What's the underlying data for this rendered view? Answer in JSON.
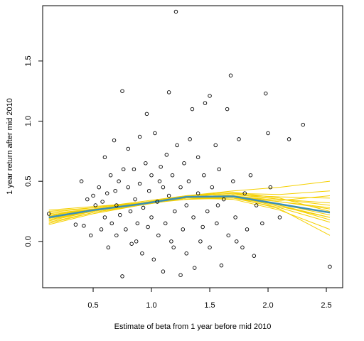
{
  "chart_data": {
    "type": "scatter",
    "x_label": "Estimate of beta from 1 year before mid 2010",
    "y_label": "1 year return after mid 2010",
    "xlim": [
      0.067,
      2.64
    ],
    "ylim": [
      -0.385,
      1.96
    ],
    "xticks": [
      0.5,
      {
        "value": 1.0,
        "label": "1.0"
      },
      1.5,
      {
        "value": 2.0,
        "label": "2.0"
      },
      2.5
    ],
    "yticks": [
      {
        "value": 0.0,
        "label": "0.0"
      },
      0.5,
      {
        "value": 1.0,
        "label": "1.0"
      },
      1.5
    ],
    "points": {
      "color": "#000000",
      "x": [
        0.12,
        0.35,
        0.4,
        0.42,
        0.45,
        0.48,
        0.5,
        0.52,
        0.55,
        0.57,
        0.6,
        0.6,
        0.62,
        0.63,
        0.65,
        0.66,
        0.68,
        0.7,
        0.7,
        0.72,
        0.73,
        0.75,
        0.75,
        0.76,
        0.78,
        0.8,
        0.8,
        0.82,
        0.83,
        0.85,
        0.86,
        0.88,
        0.9,
        0.9,
        0.92,
        0.93,
        0.95,
        0.96,
        0.98,
        1.0,
        1.0,
        1.02,
        1.03,
        1.05,
        1.06,
        1.08,
        1.1,
        1.1,
        1.12,
        1.13,
        1.15,
        1.15,
        1.17,
        1.18,
        1.2,
        1.21,
        1.22,
        1.25,
        1.25,
        1.27,
        1.28,
        1.3,
        1.3,
        1.32,
        1.35,
        1.36,
        1.37,
        1.4,
        1.4,
        1.42,
        1.45,
        1.46,
        1.48,
        1.5,
        1.5,
        1.52,
        1.55,
        1.56,
        1.58,
        1.6,
        1.62,
        1.65,
        1.66,
        1.68,
        1.7,
        1.72,
        1.75,
        1.78,
        1.8,
        1.82,
        1.85,
        1.88,
        1.9,
        1.95,
        1.98,
        2.0,
        2.02,
        2.1,
        2.18,
        2.3,
        2.53,
        0.58,
        0.69,
        0.87,
        0.97,
        1.07,
        1.19,
        1.33,
        1.44,
        1.57,
        1.73
      ],
      "y": [
        0.23,
        0.14,
        0.5,
        0.13,
        0.35,
        0.05,
        0.38,
        0.3,
        0.45,
        0.1,
        0.7,
        0.2,
        0.4,
        -0.05,
        0.55,
        0.15,
        0.84,
        0.3,
        0.05,
        0.5,
        0.22,
        1.25,
        -0.29,
        0.6,
        0.1,
        0.45,
        0.77,
        0.25,
        -0.02,
        0.6,
        0.35,
        0.15,
        0.87,
        0.48,
        -0.1,
        0.28,
        0.65,
        1.06,
        0.42,
        0.2,
        0.55,
        -0.15,
        0.9,
        0.33,
        0.05,
        0.62,
        0.45,
        -0.25,
        0.15,
        0.72,
        1.24,
        0.38,
        0.0,
        0.55,
        0.25,
        1.91,
        0.8,
        -0.28,
        0.45,
        0.1,
        0.65,
        0.3,
        -0.1,
        0.5,
        1.1,
        0.2,
        -0.22,
        0.7,
        0.4,
        0.0,
        0.55,
        1.15,
        0.25,
        1.21,
        -0.05,
        0.45,
        0.8,
        0.15,
        0.6,
        -0.2,
        0.35,
        1.1,
        0.05,
        1.38,
        0.5,
        0.2,
        0.85,
        -0.05,
        0.4,
        0.1,
        0.55,
        -0.12,
        0.3,
        0.15,
        1.23,
        0.9,
        0.45,
        0.2,
        0.85,
        0.97,
        -0.21,
        0.33,
        0.42,
        0.0,
        0.12,
        0.5,
        -0.05,
        0.85,
        0.12,
        0.3,
        0.0
      ]
    },
    "line_x": [
      0.12,
      0.5,
      0.9,
      1.3,
      1.7,
      2.1,
      2.53
    ],
    "bootstrap": {
      "color": "#f5d000",
      "series": [
        {
          "values": [
            0.18,
            0.25,
            0.31,
            0.36,
            0.37,
            0.3,
            0.2
          ]
        },
        {
          "values": [
            0.22,
            0.27,
            0.32,
            0.37,
            0.38,
            0.33,
            0.28
          ]
        },
        {
          "values": [
            0.16,
            0.24,
            0.3,
            0.36,
            0.39,
            0.35,
            0.32
          ]
        },
        {
          "values": [
            0.25,
            0.28,
            0.32,
            0.36,
            0.36,
            0.28,
            0.16
          ]
        },
        {
          "values": [
            0.2,
            0.26,
            0.31,
            0.37,
            0.4,
            0.39,
            0.42
          ]
        },
        {
          "values": [
            0.14,
            0.23,
            0.3,
            0.37,
            0.38,
            0.3,
            0.18
          ]
        },
        {
          "values": [
            0.24,
            0.28,
            0.33,
            0.38,
            0.37,
            0.29,
            0.2
          ]
        },
        {
          "values": [
            0.19,
            0.25,
            0.31,
            0.36,
            0.39,
            0.37,
            0.36
          ]
        },
        {
          "values": [
            0.21,
            0.27,
            0.32,
            0.36,
            0.35,
            0.26,
            0.1
          ]
        },
        {
          "values": [
            0.17,
            0.25,
            0.32,
            0.38,
            0.4,
            0.35,
            0.3
          ]
        },
        {
          "values": [
            0.23,
            0.27,
            0.31,
            0.35,
            0.37,
            0.33,
            0.27
          ]
        },
        {
          "values": [
            0.15,
            0.24,
            0.31,
            0.38,
            0.41,
            0.36,
            0.25
          ]
        },
        {
          "values": [
            0.26,
            0.29,
            0.32,
            0.35,
            0.36,
            0.31,
            0.22
          ]
        },
        {
          "values": [
            0.2,
            0.26,
            0.3,
            0.36,
            0.38,
            0.34,
            0.38
          ]
        },
        {
          "values": [
            0.18,
            0.26,
            0.32,
            0.37,
            0.37,
            0.27,
            0.05
          ]
        },
        {
          "values": [
            0.22,
            0.26,
            0.31,
            0.38,
            0.42,
            0.45,
            0.5
          ]
        }
      ]
    },
    "fit": {
      "color": "#3a8fb7",
      "values": [
        0.2,
        0.26,
        0.31,
        0.37,
        0.375,
        0.31,
        0.24
      ]
    }
  }
}
